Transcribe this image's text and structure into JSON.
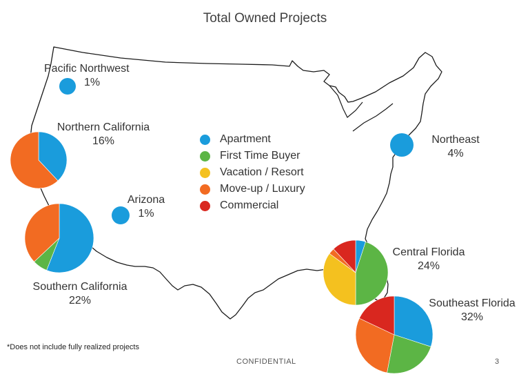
{
  "title": "Total Owned Projects",
  "legend": [
    {
      "key": "apartment",
      "label": "Apartment",
      "color": "#1a9cdc"
    },
    {
      "key": "first_time_buyer",
      "label": "First Time Buyer",
      "color": "#5cb545"
    },
    {
      "key": "vacation_resort",
      "label": "Vacation / Resort",
      "color": "#f4c11f"
    },
    {
      "key": "move_up_luxury",
      "label": "Move-up / Luxury",
      "color": "#f26b22"
    },
    {
      "key": "commercial",
      "label": "Commercial",
      "color": "#d9271f"
    }
  ],
  "regions": [
    {
      "id": "pacific-northwest",
      "name": "Pacific Northwest",
      "share": "1%",
      "segments": [
        {
          "key": "apartment",
          "value": 100
        }
      ]
    },
    {
      "id": "northern-california",
      "name": "Northern California",
      "share": "16%",
      "segments": [
        {
          "key": "apartment",
          "value": 38
        },
        {
          "key": "move_up_luxury",
          "value": 62
        }
      ]
    },
    {
      "id": "arizona",
      "name": "Arizona",
      "share": "1%",
      "segments": [
        {
          "key": "apartment",
          "value": 100
        }
      ]
    },
    {
      "id": "southern-california",
      "name": "Southern California",
      "share": "22%",
      "segments": [
        {
          "key": "apartment",
          "value": 56
        },
        {
          "key": "first_time_buyer",
          "value": 7
        },
        {
          "key": "move_up_luxury",
          "value": 37
        }
      ]
    },
    {
      "id": "northeast",
      "name": "Northeast",
      "share": "4%",
      "segments": [
        {
          "key": "apartment",
          "value": 100
        }
      ]
    },
    {
      "id": "central-florida",
      "name": "Central Florida",
      "share": "24%",
      "segments": [
        {
          "key": "apartment",
          "value": 5
        },
        {
          "key": "first_time_buyer",
          "value": 45
        },
        {
          "key": "vacation_resort",
          "value": 35
        },
        {
          "key": "move_up_luxury",
          "value": 3
        },
        {
          "key": "commercial",
          "value": 12
        }
      ]
    },
    {
      "id": "southeast-florida",
      "name": "Southeast Florida",
      "share": "32%",
      "segments": [
        {
          "key": "apartment",
          "value": 30
        },
        {
          "key": "first_time_buyer",
          "value": 23
        },
        {
          "key": "move_up_luxury",
          "value": 29
        },
        {
          "key": "commercial",
          "value": 18
        }
      ]
    }
  ],
  "footnote": "*Does not include fully realized projects",
  "confidential": "CONFIDENTIAL",
  "page_number": "3"
}
